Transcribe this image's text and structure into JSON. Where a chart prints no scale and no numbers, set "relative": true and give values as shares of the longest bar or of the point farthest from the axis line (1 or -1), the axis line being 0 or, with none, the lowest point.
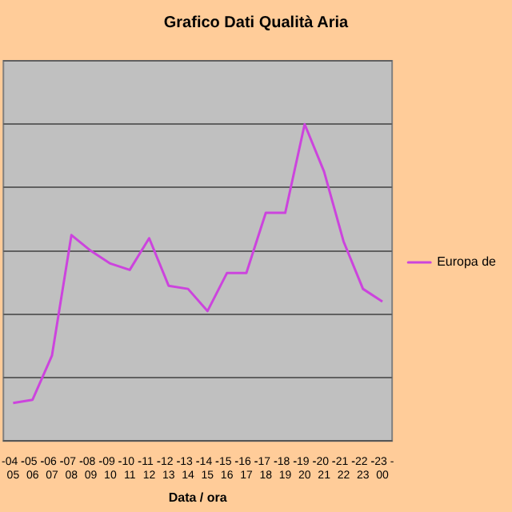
{
  "chart_data": {
    "type": "line",
    "title": "Grafico Dati Qualità Aria",
    "xlabel": "Data / ora",
    "relative": true,
    "grid": "y",
    "legend": "right",
    "marker": "none",
    "line_style": "solid",
    "categories": [
      "-04 -\n05",
      "-05 -\n06",
      "-06 -\n07",
      "-07 -\n08",
      "-08 -\n09",
      "-09 -\n10",
      "-10 -\n11",
      "-11 -\n12",
      "-12 -\n13",
      "-13 -\n14",
      "-14 -\n15",
      "-15 -\n16",
      "-16 -\n17",
      "-17 -\n18",
      "-18 -\n19",
      "-19 -\n20",
      "-20 -\n21",
      "-21 -\n22",
      "-22 -\n23",
      "-23 -\n00"
    ],
    "series": [
      {
        "name": "Europa de",
        "color": "#cc44dd",
        "values": [
          0.12,
          0.13,
          0.27,
          0.65,
          0.6,
          0.56,
          0.54,
          0.64,
          0.49,
          0.48,
          0.41,
          0.53,
          0.53,
          0.72,
          0.72,
          1,
          0.85,
          0.63,
          0.48,
          0.44
        ]
      }
    ]
  }
}
